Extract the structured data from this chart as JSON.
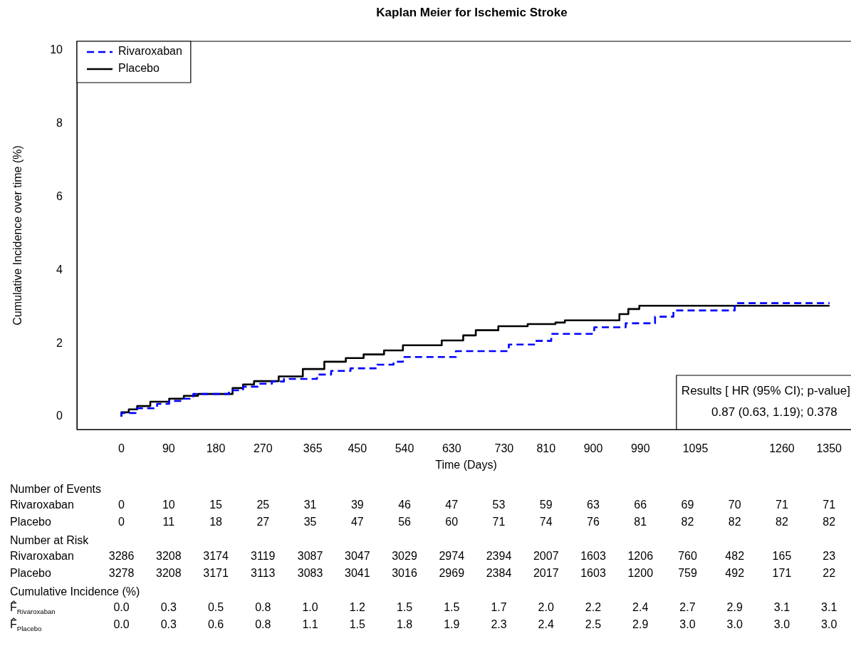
{
  "chart_data": {
    "type": "step",
    "title": "Kaplan Meier for Ischemic Stroke",
    "xlabel": "Time (Days)",
    "ylabel": "Cumulative Incidence over time (%)",
    "xlim": [
      -85,
      1400
    ],
    "ylim": [
      -0.35,
      10.25
    ],
    "xticks": [
      0,
      90,
      180,
      270,
      365,
      450,
      540,
      630,
      730,
      810,
      900,
      990,
      1095,
      1260,
      1350
    ],
    "yticks": [
      0,
      2,
      4,
      6,
      8,
      10
    ],
    "grid": false,
    "legend": "top left",
    "marker": "none",
    "series": [
      {
        "name": "Rivaroxaban",
        "color": "#0000ff",
        "line_style": "dashed",
        "x": [
          0,
          27,
          68,
          91,
          119,
          137,
          205,
          232,
          260,
          287,
          310,
          373,
          400,
          437,
          488,
          519,
          537,
          638,
          739,
          790,
          820,
          902,
          962,
          1018,
          1053,
          1170,
          1175,
          1351
        ],
        "values": [
          0,
          0.1,
          0.23,
          0.35,
          0.43,
          0.49,
          0.62,
          0.72,
          0.82,
          0.9,
          0.96,
          1.03,
          1.15,
          1.25,
          1.32,
          1.42,
          1.5,
          1.63,
          1.79,
          1.97,
          2.07,
          2.26,
          2.44,
          2.55,
          2.73,
          2.9,
          3.1,
          3.1
        ]
      },
      {
        "name": "Placebo",
        "color": "#000000",
        "line_style": "solid",
        "x": [
          0,
          14,
          30,
          55,
          91,
          119,
          146,
          212,
          232,
          253,
          300,
          346,
          387,
          428,
          462,
          501,
          537,
          611,
          652,
          676,
          719,
          775,
          828,
          846,
          950,
          967,
          988,
          1000,
          1351
        ],
        "values": [
          0,
          0.12,
          0.2,
          0.29,
          0.41,
          0.49,
          0.57,
          0.62,
          0.78,
          0.88,
          0.97,
          1.1,
          1.3,
          1.5,
          1.6,
          1.7,
          1.81,
          1.95,
          2.08,
          2.22,
          2.36,
          2.47,
          2.53,
          2.57,
          2.63,
          2.8,
          2.94,
          3.03,
          3.03
        ]
      }
    ],
    "annotations": [
      "Results [ HR (95% CI); p-value]",
      "0.87 (0.63, 1.19); 0.378",
      "Number of Events",
      "Rivaroxaban 0 10 15 25 31 39 46 47 53 59 63 66 69 70 71 71",
      "Placebo 0 11 18 27 35 47 56 60 71 74 76 81 82 82 82 82",
      "Number at Risk",
      "Rivaroxaban 3286 3208 3174 3119 3087 3047 3029 2974 2394 2007 1603 1206 760 482 165 23",
      "Placebo 3278 3208 3171 3113 3083 3041 3016 2969 2384 2017 1603 1200 759 492 171 22",
      "Cumulative Incidence (%)",
      "F̂$_{Rivaroxaban}$ 0.0 0.3 0.5 0.8 1.0 1.2 1.5 1.5 1.7 2.0 2.2 2.4 2.7 2.9 3.1 3.1",
      "F̂$_{Placebo}$ 0.0 0.3 0.6 0.8 1.1 1.5 1.8 1.9 2.3 2.4 2.5 2.9 3.0 3.0 3.0 3.0"
    ]
  }
}
